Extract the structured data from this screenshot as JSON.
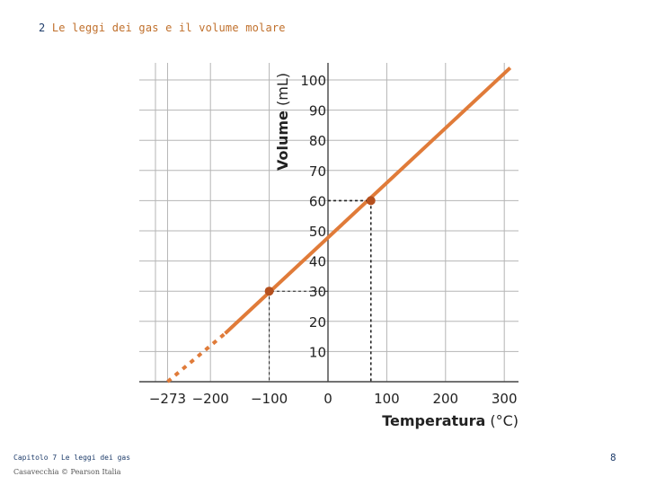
{
  "header": {
    "number": "2",
    "title": "Le leggi dei gas e il volume molare"
  },
  "footer": {
    "chapter": "Capitolo 7 Le leggi dei gas",
    "copyright": "Casavecchia © Pearson Italia",
    "page_number": "8"
  },
  "chart_data": {
    "type": "line",
    "xlabel_main": "Temperatura",
    "xlabel_unit": "(°C)",
    "ylabel_main": "Volume",
    "ylabel_unit": "(mL)",
    "x_ticks": [
      {
        "value": -273,
        "label": "−273"
      },
      {
        "value": -200,
        "label": "−200"
      },
      {
        "value": -100,
        "label": "−100"
      },
      {
        "value": 0,
        "label": "0"
      },
      {
        "value": 100,
        "label": "100"
      },
      {
        "value": 200,
        "label": "200"
      },
      {
        "value": 300,
        "label": "300"
      }
    ],
    "y_ticks": [
      10,
      20,
      30,
      40,
      50,
      60,
      70,
      80,
      90,
      100
    ],
    "xlim": [
      -300,
      320
    ],
    "ylim": [
      0,
      105
    ],
    "grid": true,
    "series": [
      {
        "style": "solid",
        "color": "#e07b39",
        "points": [
          [
            -175,
            16
          ],
          [
            310,
            104
          ]
        ]
      },
      {
        "style": "dashed",
        "color": "#e07b39",
        "points": [
          [
            -273,
            0
          ],
          [
            -175,
            16
          ]
        ]
      }
    ],
    "highlight_points": [
      {
        "x": -100,
        "y": 30,
        "color": "#b5501e"
      },
      {
        "x": 73,
        "y": 60,
        "color": "#b5501e"
      }
    ]
  }
}
